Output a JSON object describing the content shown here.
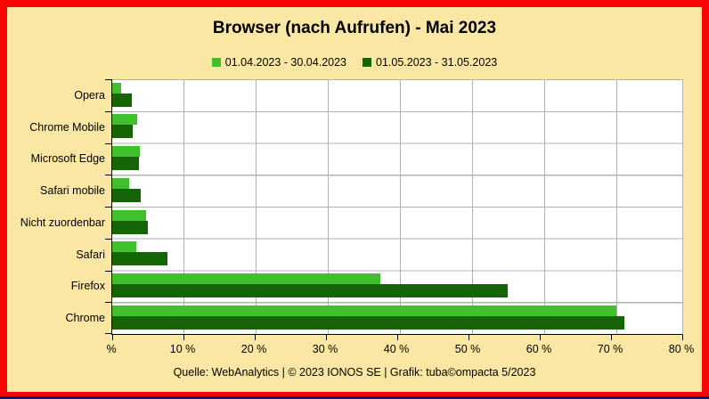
{
  "title": "Browser (nach Aufrufen) - Mai 2023",
  "footer": "Quelle: WebAnalytics | © 2023 IONOS SE | Grafik: tuba©ompacta 5/2023",
  "colors": {
    "background": "#fbe7a4",
    "frame_border": "#f90505",
    "bottom_strip": "#002060",
    "plot_background": "#ffffff",
    "gridline": "#b2b2b2",
    "axis": "#000000",
    "series_april": "#41c02e",
    "series_may": "#156507"
  },
  "chart_data": {
    "type": "bar",
    "orientation": "horizontal",
    "title": "Browser (nach Aufrufen) - Mai 2023",
    "categories": [
      "Opera",
      "Chrome Mobile",
      "Microsoft Edge",
      "Safari mobile",
      "Nicht zuordenbar",
      "Safari",
      "Firefox",
      "Chrome"
    ],
    "series": [
      {
        "name": "01.04.2023 - 30.04.2023",
        "color": "#41c02e",
        "values": [
          1.2,
          3.5,
          3.9,
          2.4,
          4.8,
          3.4,
          37.6,
          70.7
        ]
      },
      {
        "name": "01.05.2023 - 31.05.2023",
        "color": "#156507",
        "values": [
          2.8,
          2.9,
          3.7,
          4.0,
          5.0,
          7.7,
          55.5,
          71.9
        ]
      }
    ],
    "xlabel": "%",
    "ylabel": "",
    "xlim": [
      0,
      80
    ],
    "x_ticks": [
      "%",
      "10 %",
      "20 %",
      "30 %",
      "40 %",
      "50 %",
      "60 %",
      "70 %",
      "80 %"
    ],
    "grid": true,
    "legend_position": "top"
  }
}
